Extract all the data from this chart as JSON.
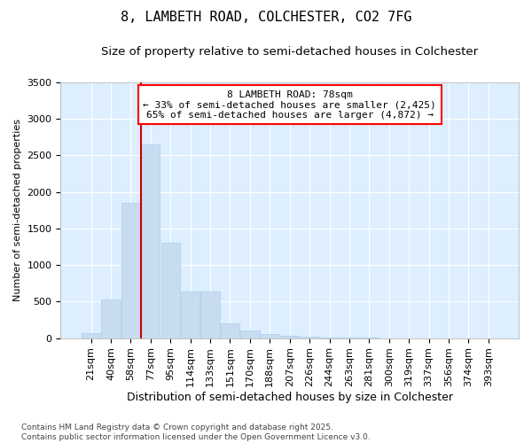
{
  "title": "8, LAMBETH ROAD, COLCHESTER, CO2 7FG",
  "subtitle": "Size of property relative to semi-detached houses in Colchester",
  "xlabel": "Distribution of semi-detached houses by size in Colchester",
  "ylabel": "Number of semi-detached properties",
  "bar_color": "#c8dcf0",
  "bar_edge_color": "#aaccee",
  "plot_bg_color": "#ddeeff",
  "fig_bg_color": "#ffffff",
  "grid_color": "#ffffff",
  "vline_color": "#cc0000",
  "vline_x_index": 3,
  "annotation_text_line1": "8 LAMBETH ROAD: 78sqm",
  "annotation_text_line2": "← 33% of semi-detached houses are smaller (2,425)",
  "annotation_text_line3": "65% of semi-detached houses are larger (4,872) →",
  "categories": [
    "21sqm",
    "40sqm",
    "58sqm",
    "77sqm",
    "95sqm",
    "114sqm",
    "133sqm",
    "151sqm",
    "170sqm",
    "188sqm",
    "207sqm",
    "226sqm",
    "244sqm",
    "263sqm",
    "281sqm",
    "300sqm",
    "319sqm",
    "337sqm",
    "356sqm",
    "374sqm",
    "393sqm"
  ],
  "values": [
    70,
    530,
    1850,
    2650,
    1300,
    640,
    640,
    200,
    100,
    55,
    30,
    20,
    10,
    5,
    3,
    1,
    1,
    0,
    0,
    0,
    0
  ],
  "ylim": [
    0,
    3500
  ],
  "yticks": [
    0,
    500,
    1000,
    1500,
    2000,
    2500,
    3000,
    3500
  ],
  "footnote": "Contains HM Land Registry data © Crown copyright and database right 2025.\nContains public sector information licensed under the Open Government Licence v3.0.",
  "title_fontsize": 11,
  "subtitle_fontsize": 9.5,
  "xlabel_fontsize": 9,
  "ylabel_fontsize": 8,
  "tick_fontsize": 8,
  "annot_fontsize": 8,
  "footnote_fontsize": 6.5
}
